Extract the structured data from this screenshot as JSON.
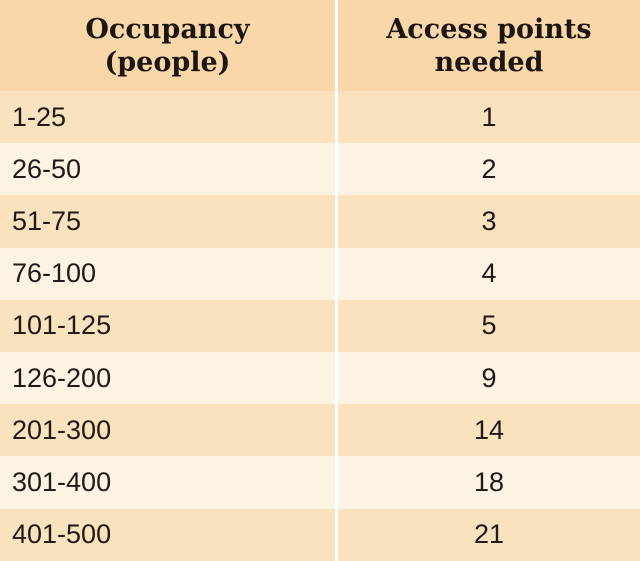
{
  "headers": {
    "occupancy_line1": "Occupancy",
    "occupancy_line2": "(people)",
    "access_line1": "Access points",
    "access_line2": "needed"
  },
  "rows": [
    {
      "occupancy": "1-25",
      "access_points": "1"
    },
    {
      "occupancy": "26-50",
      "access_points": "2"
    },
    {
      "occupancy": "51-75",
      "access_points": "3"
    },
    {
      "occupancy": "76-100",
      "access_points": "4"
    },
    {
      "occupancy": "101-125",
      "access_points": "5"
    },
    {
      "occupancy": "126-200",
      "access_points": "9"
    },
    {
      "occupancy": "201-300",
      "access_points": "14"
    },
    {
      "occupancy": "301-400",
      "access_points": "18"
    },
    {
      "occupancy": "401-500",
      "access_points": "21"
    }
  ],
  "colors": {
    "header_bg": "#f9d7a9",
    "row_light": "#fdf3e2",
    "row_dark": "#fbe2bf",
    "divider": "#ffffff",
    "text": "#1e1a16"
  }
}
